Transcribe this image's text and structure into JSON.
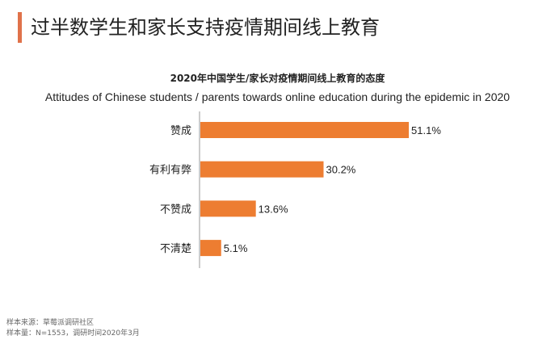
{
  "header": {
    "title": "过半数学生和家长支持疫情期间线上教育"
  },
  "chart_data": {
    "type": "bar",
    "orientation": "horizontal",
    "title": "2020年中国学生/家长对疫情期间线上教育的态度",
    "subtitle": "Attitudes of Chinese students / parents towards online education during the epidemic in 2020",
    "categories": [
      "赞成",
      "有利有弊",
      "不赞成",
      "不清楚"
    ],
    "values": [
      51.1,
      30.2,
      13.6,
      5.1
    ],
    "labels": [
      "51.1%",
      "30.2%",
      "13.6%",
      "5.1%"
    ],
    "unit": "%",
    "color": "#ED7D31",
    "grid": false
  },
  "footer": {
    "source": "样本来源：草莓派调研社区",
    "sample": "样本量：N=1553，调研时间2020年3月"
  }
}
